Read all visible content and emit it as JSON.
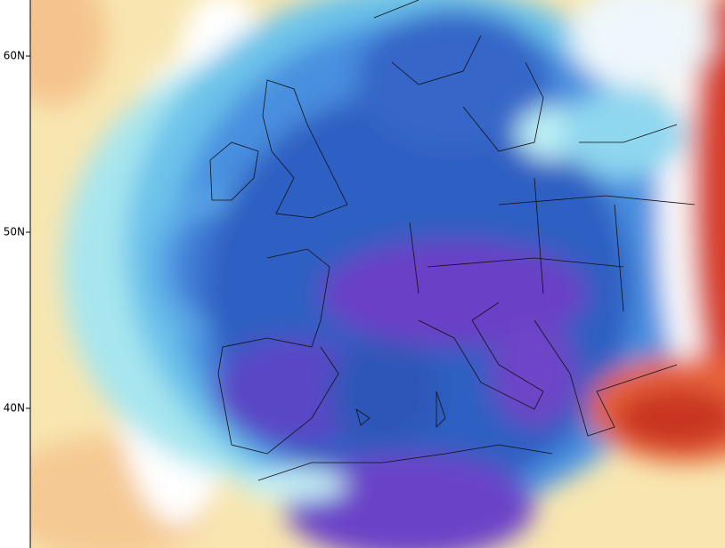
{
  "axis": {
    "lat_labels": [
      "60N",
      "50N",
      "40N"
    ]
  }
}
